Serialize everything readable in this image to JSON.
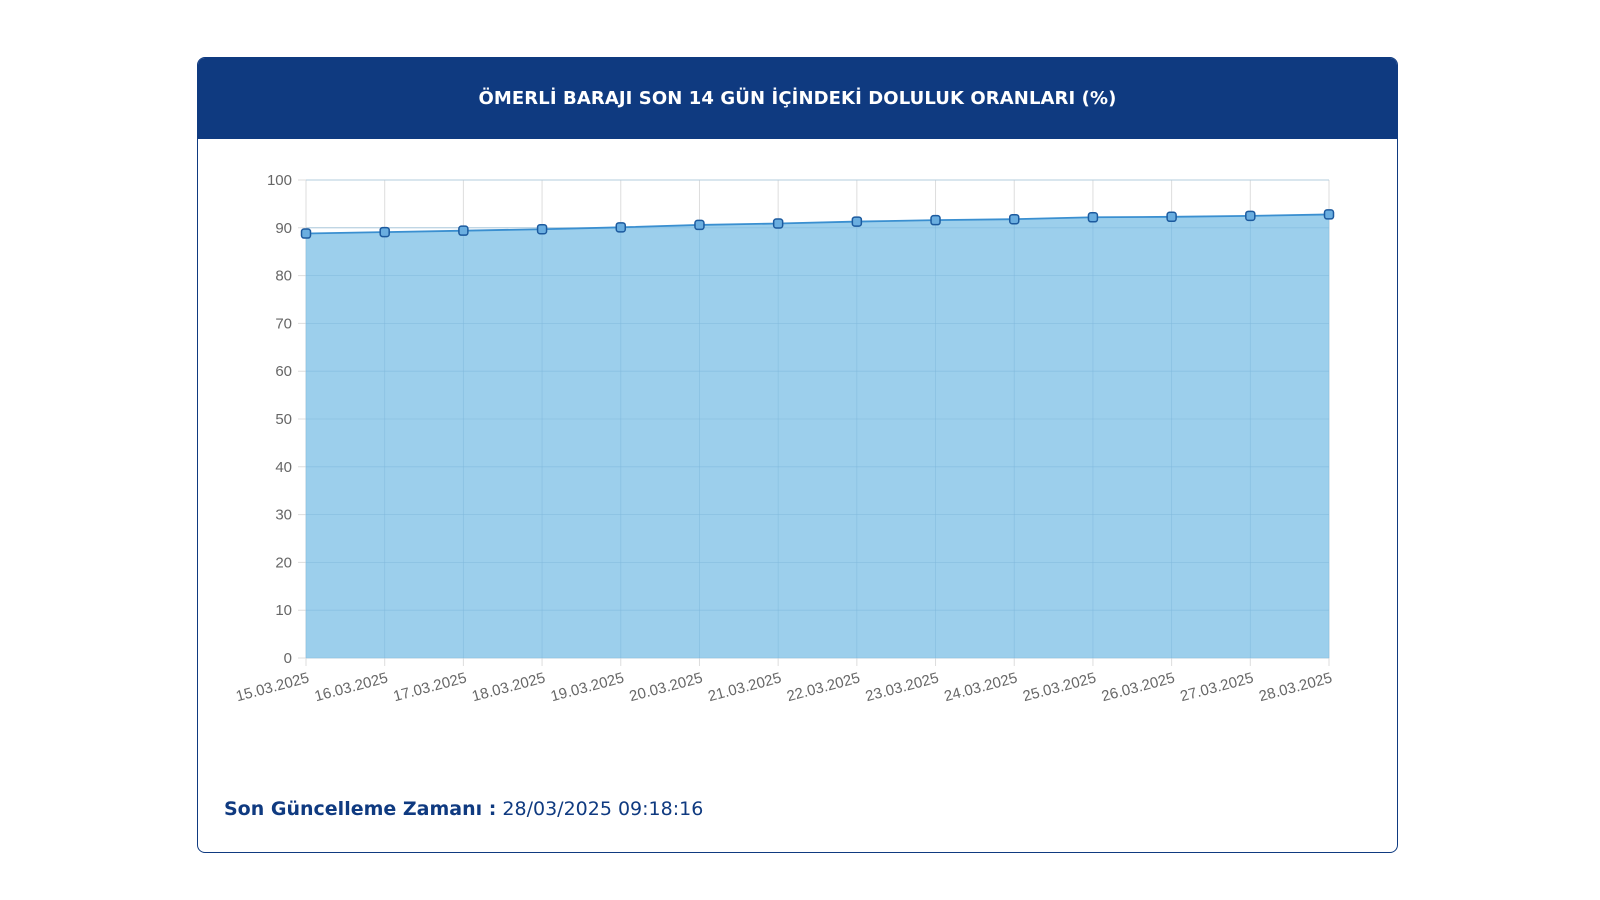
{
  "header": {
    "title": "ÖMERLİ BARAJI SON 14 GÜN İÇİNDEKİ DOLULUK ORANLARI (%)"
  },
  "footer": {
    "label": "Son Güncelleme Zamanı :",
    "value": "28/03/2025 09:18:16"
  },
  "colors": {
    "header_bg": "#0f3a80",
    "line": "#3a8fd0",
    "fill": "#9ccfec",
    "grid": "#dddddd"
  },
  "chart_data": {
    "type": "area",
    "x": [
      "15.03.2025",
      "16.03.2025",
      "17.03.2025",
      "18.03.2025",
      "19.03.2025",
      "20.03.2025",
      "21.03.2025",
      "22.03.2025",
      "23.03.2025",
      "24.03.2025",
      "25.03.2025",
      "26.03.2025",
      "27.03.2025",
      "28.03.2025"
    ],
    "series": [
      {
        "values": [
          88.8,
          89.1,
          89.4,
          89.7,
          90.1,
          90.6,
          90.9,
          91.3,
          91.6,
          91.8,
          92.2,
          92.3,
          92.5,
          92.8
        ]
      }
    ],
    "ylim": [
      0,
      100
    ],
    "yticks": [
      0,
      10,
      20,
      30,
      40,
      50,
      60,
      70,
      80,
      90,
      100
    ],
    "grid": true,
    "legend": "none"
  }
}
